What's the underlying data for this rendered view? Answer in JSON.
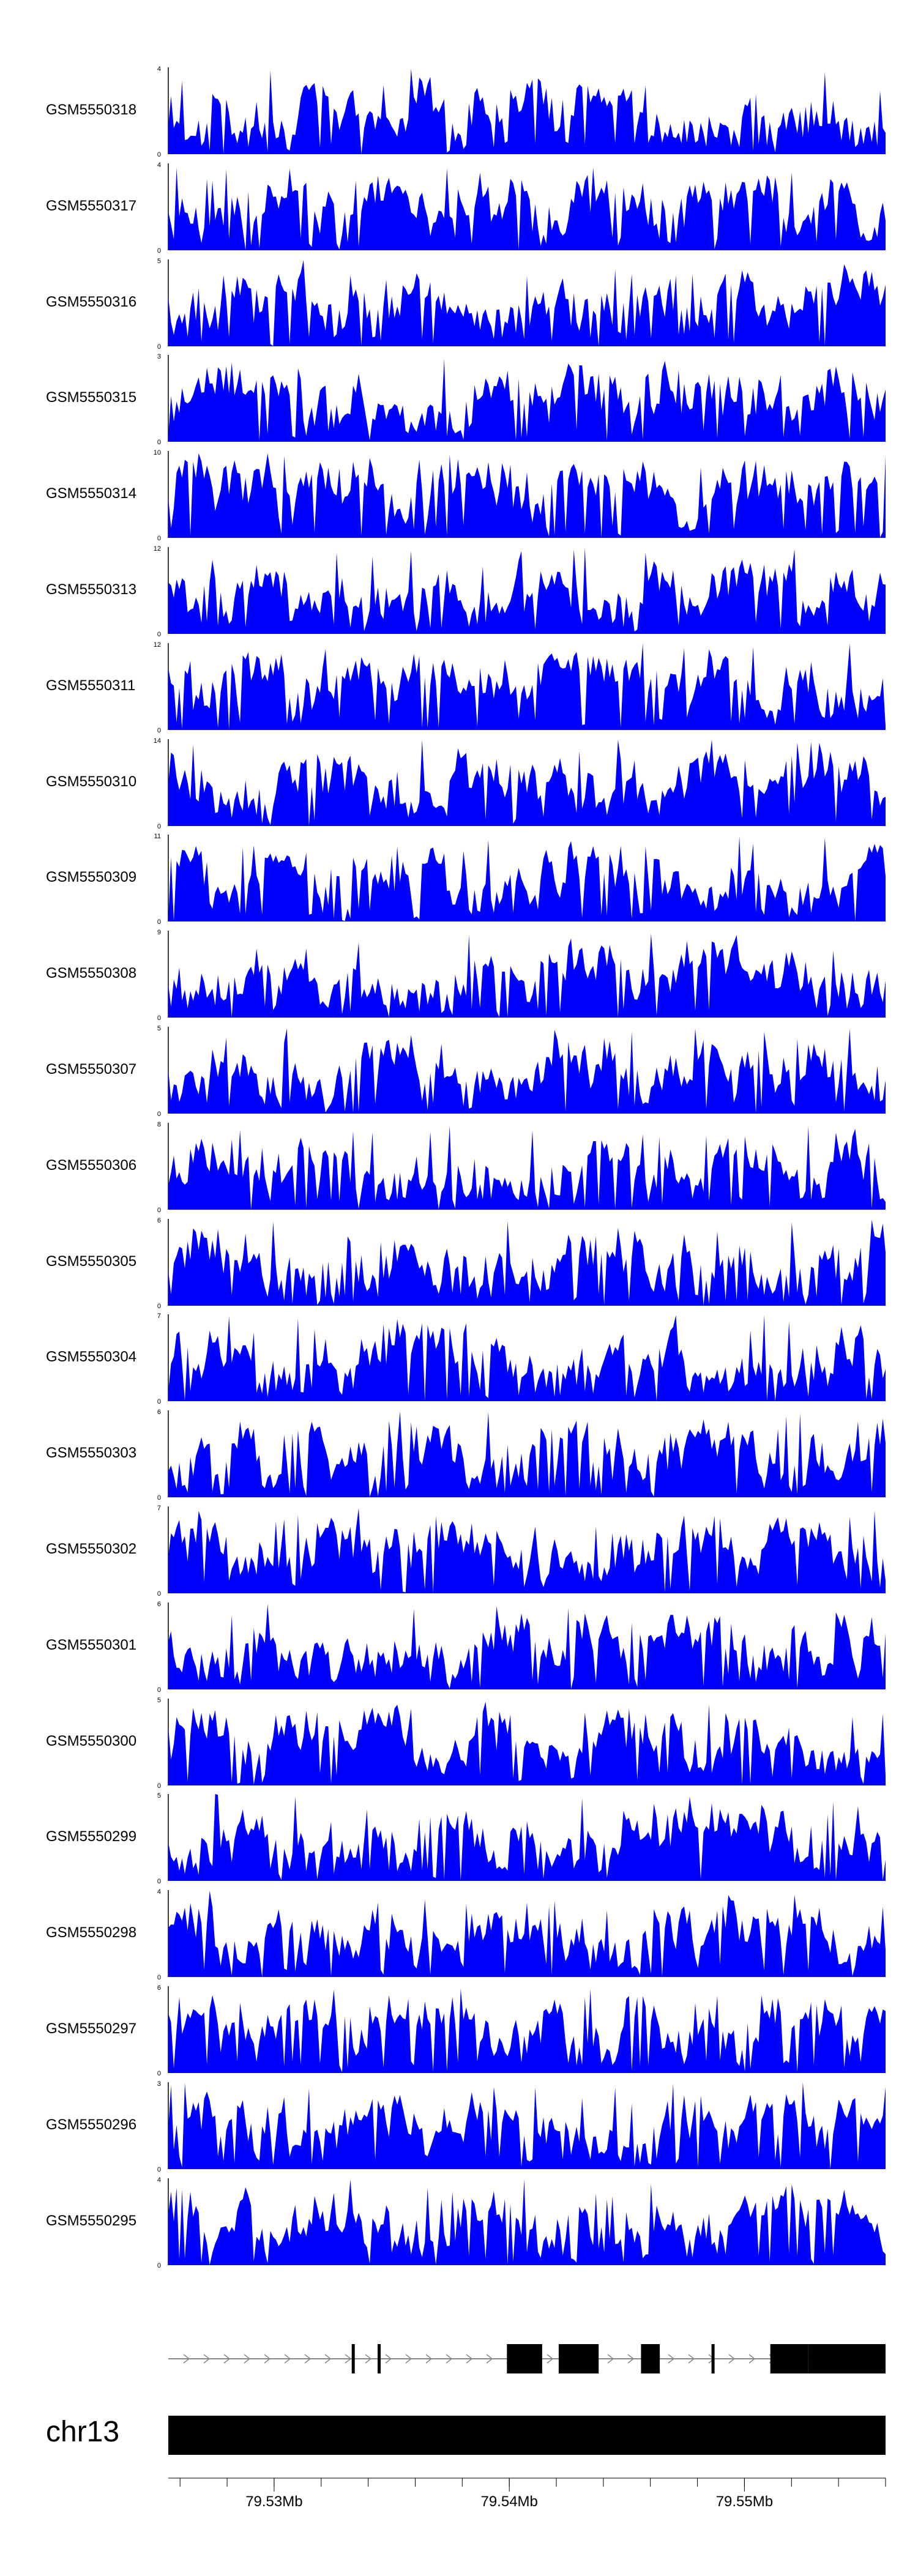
{
  "chart_data": {
    "type": "area",
    "series_color": "#0000ff",
    "tracks": [
      {
        "name": "GSM5550318",
        "ymax": 4
      },
      {
        "name": "GSM5550317",
        "ymax": 4
      },
      {
        "name": "GSM5550316",
        "ymax": 5
      },
      {
        "name": "GSM5550315",
        "ymax": 3
      },
      {
        "name": "GSM5550314",
        "ymax": 10
      },
      {
        "name": "GSM5550313",
        "ymax": 12
      },
      {
        "name": "GSM5550311",
        "ymax": 12
      },
      {
        "name": "GSM5550310",
        "ymax": 14
      },
      {
        "name": "GSM5550309",
        "ymax": 11
      },
      {
        "name": "GSM5550308",
        "ymax": 9
      },
      {
        "name": "GSM5550307",
        "ymax": 5
      },
      {
        "name": "GSM5550306",
        "ymax": 8
      },
      {
        "name": "GSM5550305",
        "ymax": 6
      },
      {
        "name": "GSM5550304",
        "ymax": 7
      },
      {
        "name": "GSM5550303",
        "ymax": 6
      },
      {
        "name": "GSM5550302",
        "ymax": 7
      },
      {
        "name": "GSM5550301",
        "ymax": 6
      },
      {
        "name": "GSM5550300",
        "ymax": 5
      },
      {
        "name": "GSM5550299",
        "ymax": 5
      },
      {
        "name": "GSM5550298",
        "ymax": 4
      },
      {
        "name": "GSM5550297",
        "ymax": 6
      },
      {
        "name": "GSM5550296",
        "ymax": 3
      },
      {
        "name": "GSM5550295",
        "ymax": 4
      }
    ],
    "gene_model": {
      "strand": "+",
      "exons_mb": [
        [
          79.5333,
          79.5334
        ],
        [
          79.5344,
          79.5345
        ],
        [
          79.5399,
          79.5414
        ],
        [
          79.5421,
          79.5438
        ],
        [
          79.5456,
          79.5464
        ],
        [
          79.5486,
          79.5487
        ],
        [
          79.5511,
          79.5527
        ],
        [
          79.5527,
          79.556
        ]
      ]
    },
    "chromosome": "chr13",
    "x_range_mb": [
      79.5255,
      79.556
    ],
    "x_ticks": [
      {
        "value": 79.53,
        "label": "79.53Mb"
      },
      {
        "value": 79.54,
        "label": "79.54Mb"
      },
      {
        "value": 79.55,
        "label": "79.55Mb"
      }
    ]
  }
}
